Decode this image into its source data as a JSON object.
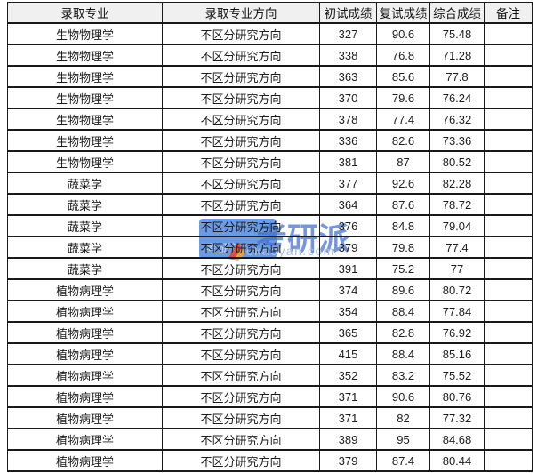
{
  "table": {
    "headers": [
      "录取专业",
      "录取专业方向",
      "初试成绩",
      "复试成绩",
      "综合成绩",
      "备注"
    ],
    "rows": [
      {
        "major": "生物物理学",
        "direction": "不区分研究方向",
        "initial": "327",
        "retest": "90.6",
        "overall": "75.48",
        "remark": ""
      },
      {
        "major": "生物物理学",
        "direction": "不区分研究方向",
        "initial": "338",
        "retest": "76.8",
        "overall": "71.28",
        "remark": ""
      },
      {
        "major": "生物物理学",
        "direction": "不区分研究方向",
        "initial": "363",
        "retest": "85.6",
        "overall": "77.8",
        "remark": ""
      },
      {
        "major": "生物物理学",
        "direction": "不区分研究方向",
        "initial": "370",
        "retest": "79.6",
        "overall": "76.24",
        "remark": ""
      },
      {
        "major": "生物物理学",
        "direction": "不区分研究方向",
        "initial": "378",
        "retest": "77.4",
        "overall": "76.32",
        "remark": ""
      },
      {
        "major": "生物物理学",
        "direction": "不区分研究方向",
        "initial": "336",
        "retest": "82.6",
        "overall": "73.36",
        "remark": ""
      },
      {
        "major": "生物物理学",
        "direction": "不区分研究方向",
        "initial": "381",
        "retest": "87",
        "overall": "80.52",
        "remark": ""
      },
      {
        "major": "蔬菜学",
        "direction": "不区分研究方向",
        "initial": "377",
        "retest": "92.6",
        "overall": "82.28",
        "remark": ""
      },
      {
        "major": "蔬菜学",
        "direction": "不区分研究方向",
        "initial": "364",
        "retest": "87.6",
        "overall": "78.72",
        "remark": ""
      },
      {
        "major": "蔬菜学",
        "direction": "不区分研究方向",
        "initial": "376",
        "retest": "84.8",
        "overall": "79.04",
        "remark": ""
      },
      {
        "major": "蔬菜学",
        "direction": "不区分研究方向",
        "initial": "379",
        "retest": "79.8",
        "overall": "77.4",
        "remark": ""
      },
      {
        "major": "蔬菜学",
        "direction": "不区分研究方向",
        "initial": "391",
        "retest": "75.2",
        "overall": "77",
        "remark": ""
      },
      {
        "major": "植物病理学",
        "direction": "不区分研究方向",
        "initial": "374",
        "retest": "89.6",
        "overall": "80.72",
        "remark": ""
      },
      {
        "major": "植物病理学",
        "direction": "不区分研究方向",
        "initial": "354",
        "retest": "88.4",
        "overall": "77.84",
        "remark": ""
      },
      {
        "major": "植物病理学",
        "direction": "不区分研究方向",
        "initial": "365",
        "retest": "82.8",
        "overall": "76.92",
        "remark": ""
      },
      {
        "major": "植物病理学",
        "direction": "不区分研究方向",
        "initial": "415",
        "retest": "88.4",
        "overall": "85.16",
        "remark": ""
      },
      {
        "major": "植物病理学",
        "direction": "不区分研究方向",
        "initial": "352",
        "retest": "83.2",
        "overall": "75.52",
        "remark": ""
      },
      {
        "major": "植物病理学",
        "direction": "不区分研究方向",
        "initial": "371",
        "retest": "90.6",
        "overall": "80.76",
        "remark": ""
      },
      {
        "major": "植物病理学",
        "direction": "不区分研究方向",
        "initial": "371",
        "retest": "82",
        "overall": "77.32",
        "remark": ""
      },
      {
        "major": "植物病理学",
        "direction": "不区分研究方向",
        "initial": "389",
        "retest": "95",
        "overall": "84.68",
        "remark": ""
      },
      {
        "major": "植物病理学",
        "direction": "不区分研究方向",
        "initial": "379",
        "retest": "87.4",
        "overall": "80.44",
        "remark": ""
      }
    ]
  },
  "watermark": {
    "logo_text": "考研派",
    "brand": "考研派",
    "domain": "okaoyan.com",
    "brand_blue": "#3e6fd4",
    "logo_box_blue": "#4c86e0",
    "domain_blue": "#a6bfe4",
    "flame_red": "#e8442a",
    "flame_orange": "#f5a623"
  }
}
